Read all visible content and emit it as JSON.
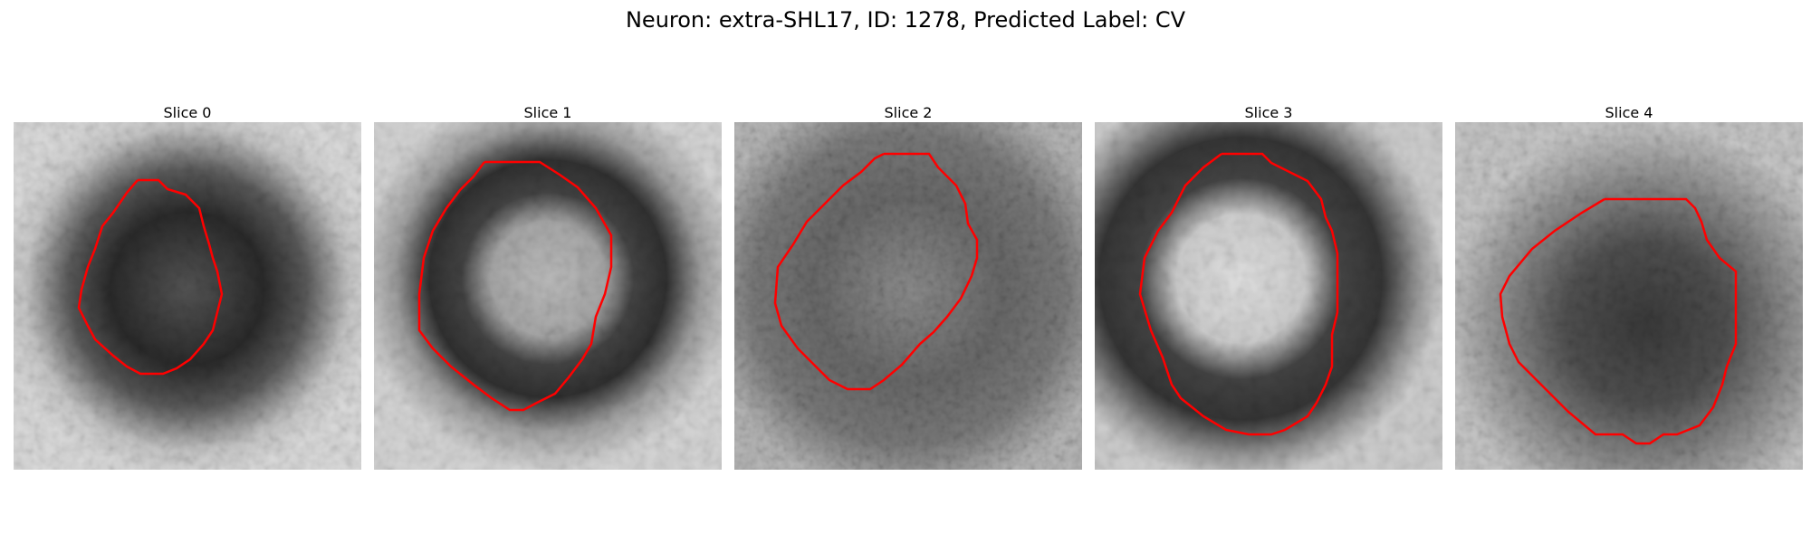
{
  "figure": {
    "title": "Neuron: extra-SHL17, ID: 1278, Predicted Label: CV"
  },
  "panels": [
    {
      "title": "Slice 0"
    },
    {
      "title": "Slice 1"
    },
    {
      "title": "Slice 2"
    },
    {
      "title": "Slice 3"
    },
    {
      "title": "Slice 4"
    }
  ],
  "colors": {
    "contour": "#ff0000",
    "background": "#ffffff"
  }
}
